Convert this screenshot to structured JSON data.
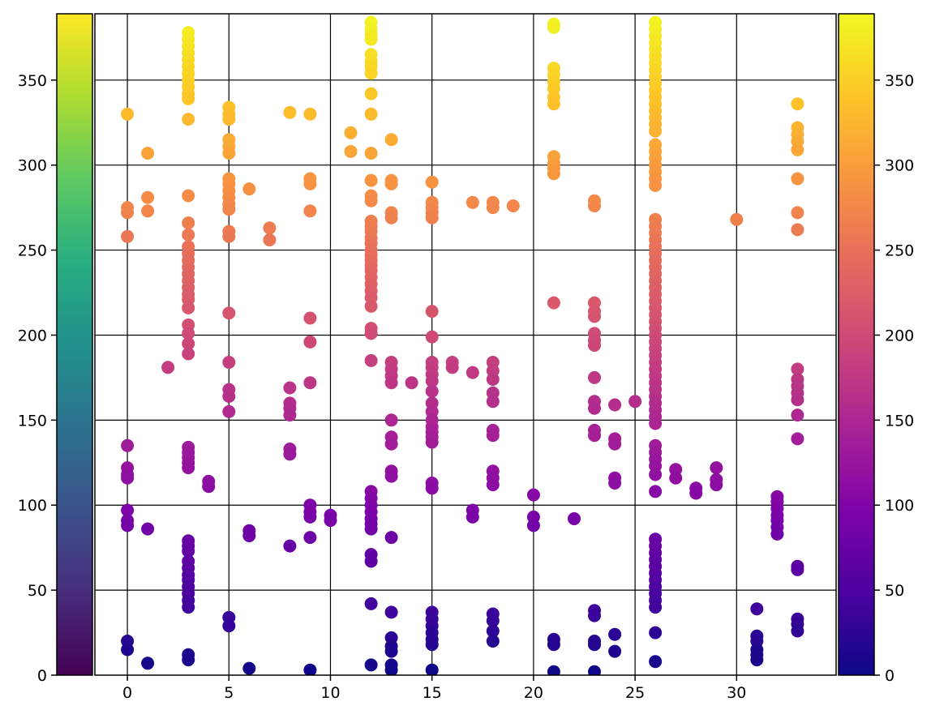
{
  "chart_data": {
    "type": "scatter",
    "title": "",
    "xlabel": "",
    "ylabel": "",
    "xlim": [
      -1.6,
      34.9
    ],
    "ylim": [
      0,
      389
    ],
    "x_ticks": [
      0,
      5,
      10,
      15,
      20,
      25,
      30
    ],
    "y_ticks": [
      0,
      50,
      100,
      150,
      200,
      250,
      300,
      350
    ],
    "grid": true,
    "color_encoding": "each point is colored by its y value; the left colorbar uses viridis and the right colorbar uses plasma over the same 0-389 range",
    "colorbars": [
      {
        "side": "left",
        "colormap": "viridis",
        "range": [
          0,
          389
        ],
        "ticks": [
          0,
          50,
          100,
          150,
          200,
          250,
          300,
          350
        ]
      },
      {
        "side": "right",
        "colormap": "plasma",
        "range": [
          0,
          389
        ],
        "ticks": [
          0,
          50,
          100,
          150,
          200,
          250,
          300,
          350
        ]
      }
    ],
    "points": [
      {
        "x": 0,
        "ys": [
          330,
          275,
          272,
          258,
          135,
          122,
          118,
          116,
          97,
          91,
          88,
          20,
          15
        ]
      },
      {
        "x": 1,
        "ys": [
          307,
          281,
          273,
          86,
          7
        ]
      },
      {
        "x": 2,
        "ys": [
          181
        ]
      },
      {
        "x": 3,
        "ys": [
          378,
          374,
          370,
          366,
          362,
          358,
          354,
          350,
          346,
          342,
          339,
          327,
          282,
          266,
          259,
          252,
          248,
          244,
          240,
          236,
          232,
          228,
          224,
          221,
          216,
          206,
          201,
          195,
          189,
          134,
          131,
          128,
          125,
          122,
          79,
          76,
          73,
          67,
          63,
          59,
          56,
          52,
          48,
          44,
          40,
          12,
          9
        ]
      },
      {
        "x": 4,
        "ys": [
          114,
          111
        ]
      },
      {
        "x": 5,
        "ys": [
          334,
          330,
          327,
          315,
          311,
          307,
          292,
          289,
          285,
          281,
          277,
          274,
          261,
          258,
          213,
          184,
          168,
          164,
          155,
          34,
          29
        ]
      },
      {
        "x": 6,
        "ys": [
          286,
          85,
          82,
          4
        ]
      },
      {
        "x": 7,
        "ys": [
          263,
          256
        ]
      },
      {
        "x": 8,
        "ys": [
          331,
          169,
          160,
          157,
          153,
          133,
          130,
          76
        ]
      },
      {
        "x": 9,
        "ys": [
          330,
          292,
          289,
          273,
          210,
          196,
          172,
          100,
          96,
          93,
          81,
          3
        ]
      },
      {
        "x": 10,
        "ys": [
          94,
          91
        ]
      },
      {
        "x": 11,
        "ys": [
          319,
          308
        ]
      },
      {
        "x": 12,
        "ys": [
          384,
          380,
          377,
          374,
          365,
          361,
          358,
          354,
          342,
          330,
          307,
          291,
          282,
          279,
          267,
          264,
          261,
          257,
          254,
          250,
          247,
          244,
          241,
          238,
          234,
          230,
          226,
          222,
          217,
          204,
          201,
          185,
          108,
          104,
          100,
          96,
          92,
          89,
          86,
          71,
          67,
          42,
          6
        ]
      },
      {
        "x": 13,
        "ys": [
          315,
          291,
          289,
          272,
          269,
          184,
          180,
          176,
          172,
          150,
          140,
          136,
          120,
          117,
          81,
          37,
          22,
          17,
          14,
          6,
          3
        ]
      },
      {
        "x": 14,
        "ys": [
          172
        ]
      },
      {
        "x": 15,
        "ys": [
          290,
          278,
          275,
          272,
          269,
          214,
          199,
          184,
          181,
          177,
          173,
          167,
          160,
          155,
          150,
          146,
          143,
          140,
          137,
          113,
          110,
          37,
          33,
          29,
          25,
          21,
          18,
          3
        ]
      },
      {
        "x": 16,
        "ys": [
          184,
          181
        ]
      },
      {
        "x": 17,
        "ys": [
          278,
          178,
          97,
          93
        ]
      },
      {
        "x": 18,
        "ys": [
          278,
          275,
          184,
          179,
          174,
          166,
          161,
          144,
          141,
          120,
          116,
          112,
          36,
          32,
          26,
          20
        ]
      },
      {
        "x": 19,
        "ys": [
          276
        ]
      },
      {
        "x": 20,
        "ys": [
          106,
          93,
          88
        ]
      },
      {
        "x": 21,
        "ys": [
          383,
          381,
          357,
          353,
          349,
          345,
          340,
          336,
          305,
          301,
          298,
          295,
          219,
          21,
          18,
          2
        ]
      },
      {
        "x": 22,
        "ys": [
          92
        ]
      },
      {
        "x": 23,
        "ys": [
          279,
          276,
          219,
          214,
          211,
          201,
          197,
          194,
          175,
          161,
          157,
          144,
          141,
          38,
          35,
          20,
          18,
          2
        ]
      },
      {
        "x": 24,
        "ys": [
          159,
          139,
          136,
          116,
          113,
          24,
          14
        ]
      },
      {
        "x": 25,
        "ys": [
          161
        ]
      },
      {
        "x": 26,
        "ys": [
          384,
          380,
          376,
          372,
          368,
          364,
          360,
          356,
          352,
          348,
          344,
          340,
          336,
          332,
          328,
          324,
          320,
          312,
          308,
          304,
          300,
          296,
          292,
          288,
          268,
          264,
          260,
          256,
          252,
          248,
          244,
          240,
          236,
          232,
          228,
          224,
          220,
          216,
          212,
          208,
          204,
          200,
          196,
          192,
          188,
          184,
          180,
          176,
          172,
          168,
          164,
          160,
          156,
          152,
          148,
          135,
          131,
          127,
          123,
          118,
          108,
          80,
          76,
          72,
          68,
          64,
          60,
          56,
          52,
          48,
          44,
          40,
          25,
          8
        ]
      },
      {
        "x": 27,
        "ys": [
          121,
          116
        ]
      },
      {
        "x": 28,
        "ys": [
          110,
          107
        ]
      },
      {
        "x": 29,
        "ys": [
          122,
          115,
          112
        ]
      },
      {
        "x": 30,
        "ys": [
          268
        ]
      },
      {
        "x": 31,
        "ys": [
          39,
          23,
          20,
          15,
          12,
          9
        ]
      },
      {
        "x": 32,
        "ys": [
          105,
          102,
          98,
          94,
          91,
          87,
          83
        ]
      },
      {
        "x": 33,
        "ys": [
          336,
          322,
          318,
          314,
          309,
          292,
          272,
          262,
          180,
          174,
          170,
          166,
          162,
          153,
          139,
          64,
          62,
          33,
          30,
          26
        ]
      }
    ]
  }
}
